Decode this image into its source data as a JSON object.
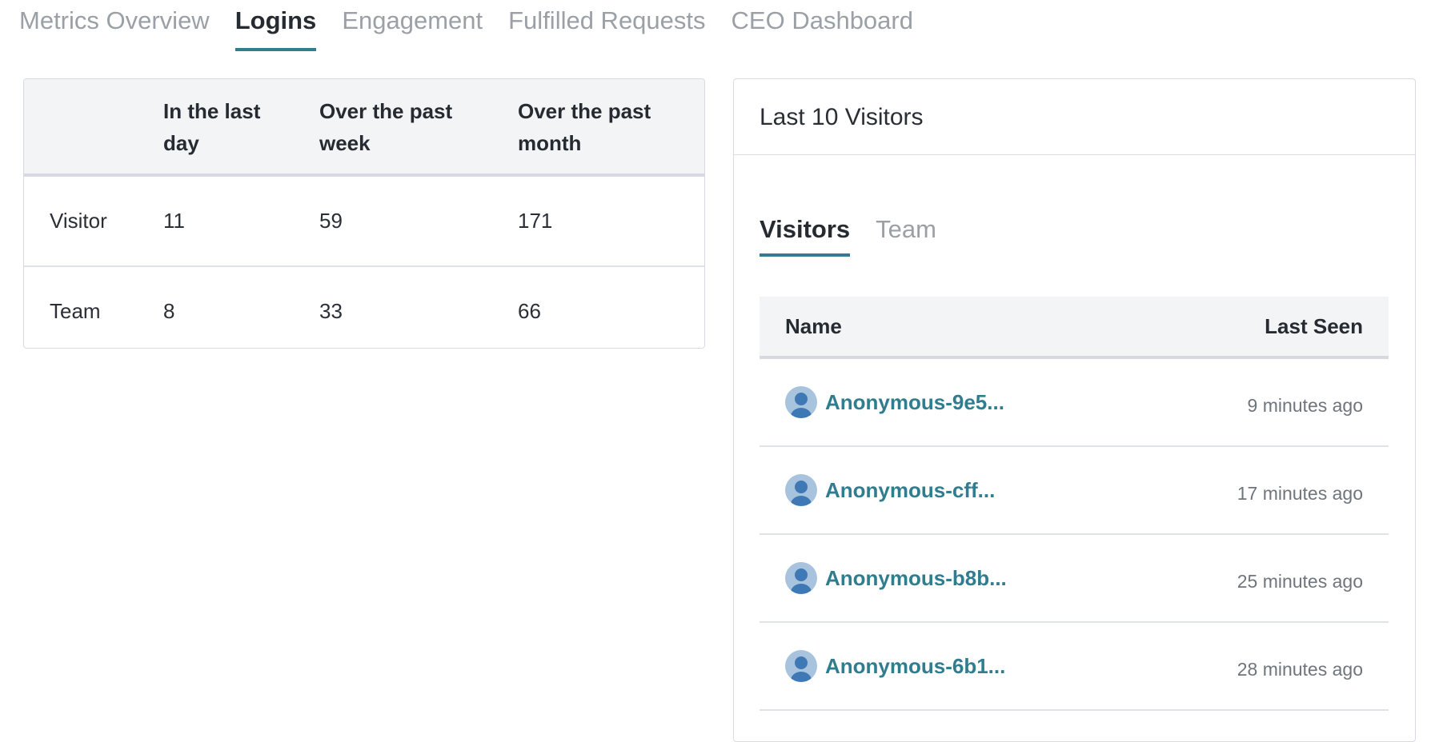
{
  "top_tabs": [
    {
      "label": "Metrics Overview",
      "active": false
    },
    {
      "label": "Logins",
      "active": true
    },
    {
      "label": "Engagement",
      "active": false
    },
    {
      "label": "Fulfilled Requests",
      "active": false
    },
    {
      "label": "CEO Dashboard",
      "active": false
    }
  ],
  "logins_table": {
    "headers": [
      "",
      "In the last day",
      "Over the past week",
      "Over the past month"
    ],
    "rows": [
      {
        "label": "Visitor",
        "day": "11",
        "week": "59",
        "month": "171"
      },
      {
        "label": "Team",
        "day": "8",
        "week": "33",
        "month": "66"
      }
    ]
  },
  "visitors_panel": {
    "title": "Last 10 Visitors",
    "tabs": [
      {
        "label": "Visitors",
        "active": true
      },
      {
        "label": "Team",
        "active": false
      }
    ],
    "columns": {
      "name": "Name",
      "last_seen": "Last Seen"
    },
    "rows": [
      {
        "name": "Anonymous-9e5...",
        "last_seen": "9 minutes ago"
      },
      {
        "name": "Anonymous-cff...",
        "last_seen": "17 minutes ago"
      },
      {
        "name": "Anonymous-b8b...",
        "last_seen": "25 minutes ago"
      },
      {
        "name": "Anonymous-6b1...",
        "last_seen": "28 minutes ago"
      }
    ]
  },
  "colors": {
    "accent": "#2f7d8f",
    "muted_text": "#9aa0a6",
    "header_bg": "#f3f4f6",
    "avatar_bg": "#a8c3de",
    "avatar_fg": "#3f79b5"
  },
  "icons": {
    "avatar": "user-avatar-icon"
  }
}
